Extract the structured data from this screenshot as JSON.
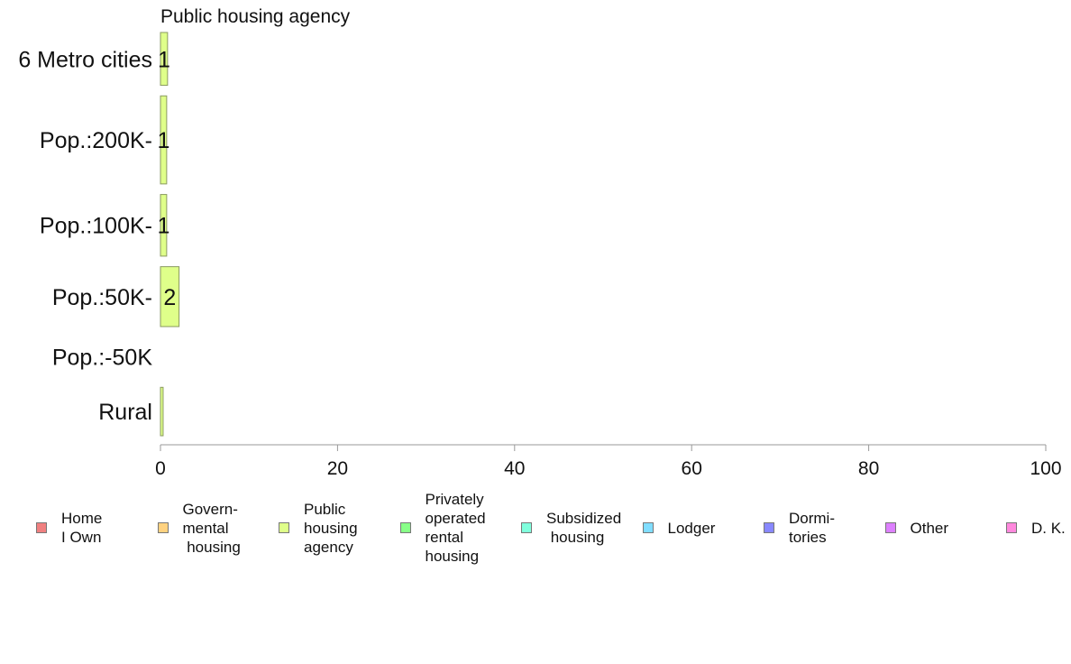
{
  "chart_data": {
    "type": "bar",
    "orientation": "horizontal",
    "title": "Public housing agency",
    "categories": [
      "6 Metro cities",
      "Pop.:200K-",
      "Pop.:100K-",
      "Pop.:50K-",
      "Pop.:-50K",
      "Rural"
    ],
    "values": [
      0.8,
      0.7,
      0.7,
      2.1,
      0.0,
      0.3
    ],
    "data_labels": [
      "1",
      "1",
      "1",
      "2",
      "",
      ""
    ],
    "bar_relative_heights": [
      0.6,
      1.0,
      0.7,
      0.68,
      0.45,
      0.55
    ],
    "xlim": [
      0,
      100
    ],
    "xticks": [
      0,
      20,
      40,
      60,
      80,
      100
    ],
    "bar_color": "#dfff8a",
    "bar_edge_color": "#8a9a60",
    "axis_color": "#999999",
    "grid": false,
    "legend_position": "bottom",
    "legend": [
      {
        "label": "Home\nI Own",
        "color": "#f08080"
      },
      {
        "label": "Govern-\nmental\n housing",
        "color": "#ffd280"
      },
      {
        "label": "Public\nhousing\nagency",
        "color": "#dfff8a"
      },
      {
        "label": "Privately\noperated\nrental\nhousing",
        "color": "#88ff88"
      },
      {
        "label": "Subsidized\n housing",
        "color": "#80ffdd"
      },
      {
        "label": "Lodger",
        "color": "#80ddff"
      },
      {
        "label": "Dormi-\ntories",
        "color": "#8888ff"
      },
      {
        "label": "Other",
        "color": "#dd80ff"
      },
      {
        "label": "D. K.",
        "color": "#ff88dd"
      }
    ]
  }
}
